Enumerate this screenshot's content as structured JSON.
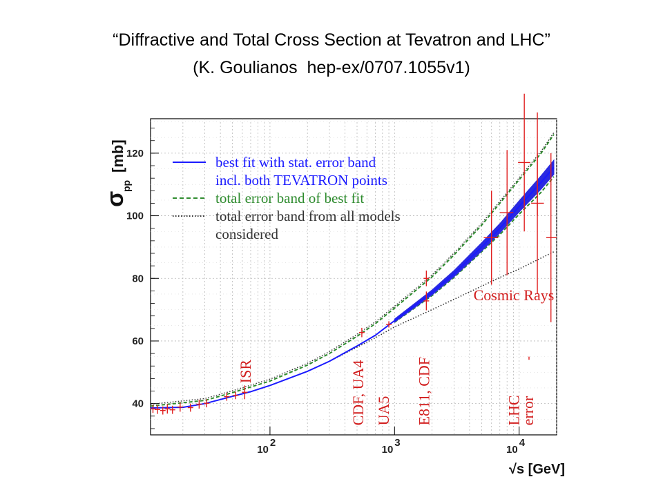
{
  "slide": {
    "title_line1": "“Diffractive and Total Cross Section at Tevatron and LHC”",
    "title_line2": "(K. Goulianos  hep-ex/0707.1055v1)"
  },
  "chart_data": {
    "type": "line",
    "x_scale": "log",
    "xlim": [
      11,
      20000
    ],
    "ylim": [
      30,
      131
    ],
    "xlabel": "√s [GeV]",
    "ylabel_main": "σ",
    "ylabel_sub": "pp",
    "ylabel_unit": "[mb]",
    "x_ticks": [
      {
        "value": 100,
        "base": "10",
        "exp": "2"
      },
      {
        "value": 1000,
        "base": "10",
        "exp": "3"
      },
      {
        "value": 10000,
        "base": "10",
        "exp": "4"
      }
    ],
    "y_ticks": [
      40,
      60,
      80,
      100,
      120
    ],
    "grid": true,
    "legend_position": "top-left",
    "legend": [
      {
        "label": "best fit with stat. error band",
        "color": "#1a1aff",
        "style": "solid"
      },
      {
        "label": "incl. both TEVATRON points",
        "color": "#1a1aff",
        "style": "none"
      },
      {
        "label": "total error band of best fit",
        "color": "#2e8b2e",
        "style": "dashed"
      },
      {
        "label": "total error band from all models",
        "color": "#333333",
        "style": "dotted"
      },
      {
        "label": "considered",
        "color": "#333333",
        "style": "none"
      }
    ],
    "colors": {
      "fit": "#1a1aff",
      "fit_band": "#2a2ae0",
      "total_band": "#2e8b2e",
      "models_band": "#333333",
      "data": "#e02020",
      "annotation": "#d21e1e"
    },
    "series": [
      {
        "role": "best-fit",
        "x": [
          11,
          20,
          30,
          50,
          70,
          100,
          200,
          300,
          500,
          700,
          1000,
          2000,
          3000,
          5000,
          7000,
          10000,
          15000,
          19000
        ],
        "y": [
          38.6,
          38.8,
          40,
          42.3,
          43.8,
          45.8,
          50.3,
          53.5,
          58.4,
          61.8,
          66.5,
          75.5,
          81.5,
          90,
          96,
          103,
          110.7,
          115.5
        ]
      },
      {
        "role": "fit-band",
        "x": [
          1000,
          2000,
          3000,
          5000,
          7000,
          10000,
          15000,
          19000
        ],
        "lower": [
          66,
          74.7,
          80.5,
          88.7,
          94.5,
          101.2,
          108.5,
          113.2
        ],
        "upper": [
          67,
          76.3,
          82.5,
          91.4,
          97.5,
          104.8,
          112.8,
          117.8
        ]
      },
      {
        "role": "total-band-upper",
        "x": [
          11,
          30,
          50,
          100,
          200,
          300,
          500,
          700,
          1000,
          2000,
          3000,
          5000,
          7000,
          10000,
          15000,
          19000
        ],
        "y": [
          39.2,
          41,
          43.5,
          47.2,
          52.3,
          56,
          61.5,
          65.5,
          70.5,
          80.5,
          87.5,
          97,
          104,
          111.5,
          120,
          126
        ]
      },
      {
        "role": "total-band-lower",
        "x": [
          1000,
          2000,
          3000,
          5000,
          7000,
          10000,
          15000,
          19000
        ],
        "y": [
          66,
          74.5,
          80.3,
          88.5,
          94,
          100.5,
          107.5,
          112.5
        ]
      },
      {
        "role": "models-band-lower",
        "x": [
          300,
          500,
          700,
          1000,
          2000,
          3000,
          5000,
          7000,
          10000,
          15000,
          19000
        ],
        "y": [
          53.5,
          58,
          61,
          64.5,
          70,
          73.3,
          77.5,
          80.3,
          83,
          86.5,
          88.5
        ]
      }
    ],
    "data_points": [
      {
        "x": 11.5,
        "y": 38.3,
        "err": 1.3
      },
      {
        "x": 12.5,
        "y": 38.1,
        "err": 1.4
      },
      {
        "x": 13.8,
        "y": 37.8,
        "err": 1.3
      },
      {
        "x": 15,
        "y": 38.3,
        "err": 1.5
      },
      {
        "x": 16.5,
        "y": 38.0,
        "err": 1.3
      },
      {
        "x": 19,
        "y": 38.9,
        "err": 1.5
      },
      {
        "x": 23,
        "y": 38.7,
        "err": 1.3
      },
      {
        "x": 27,
        "y": 39.8,
        "err": 1.4
      },
      {
        "x": 31,
        "y": 40.1,
        "err": 1.3
      },
      {
        "x": 45,
        "y": 42.2,
        "err": 1.3
      },
      {
        "x": 53,
        "y": 42.6,
        "err": 1.2
      },
      {
        "x": 62.7,
        "y": 43.6,
        "err": 2.2
      },
      {
        "x": 546,
        "y": 62.7,
        "err": 1.5
      },
      {
        "x": 900,
        "y": 65.3,
        "err": 1.0
      },
      {
        "x": 1800,
        "y": 72.8,
        "err": 3.0
      },
      {
        "x": 1800,
        "y": 80.0,
        "err": 2.5
      },
      {
        "x": 6000,
        "y": 93.0,
        "err": 15,
        "xerr_lo": 5200,
        "xerr_hi": 6800
      },
      {
        "x": 8000,
        "y": 101.0,
        "err": 20,
        "xerr_lo": 7000,
        "xerr_hi": 9000
      },
      {
        "x": 11000,
        "y": 117.0,
        "err": 22,
        "xerr_lo": 9800,
        "xerr_hi": 12300
      },
      {
        "x": 14000,
        "y": 104.0,
        "err": 29,
        "xerr_lo": 12500,
        "xerr_hi": 15800
      },
      {
        "x": 18000,
        "y": 93.0,
        "err": 27,
        "xerr_lo": 16500,
        "xerr_hi": 20000
      },
      {
        "x": 14000,
        "y": 110.0,
        "err": 10,
        "xerr_lo": 14000,
        "xerr_hi": 14000
      },
      {
        "x": 12000,
        "y": 54.5,
        "err": 0.5,
        "xerr_lo": 12000,
        "xerr_hi": 12000
      }
    ],
    "annotations": [
      {
        "text": "ISR",
        "x": 70,
        "y": 46.5,
        "rotate": -90
      },
      {
        "text": "CDF, UA4",
        "x": 560,
        "y": 33,
        "rotate": -90
      },
      {
        "text": "UA5",
        "x": 900,
        "y": 33,
        "rotate": -90
      },
      {
        "text": "E811, CDF",
        "x": 1900,
        "y": 33,
        "rotate": -90
      },
      {
        "text": "LHC",
        "x": 10000,
        "y": 33,
        "rotate": -90
      },
      {
        "text": "error",
        "x": 13000,
        "y": 33,
        "rotate": -90
      },
      {
        "text": "Cosmic Rays",
        "x": 4300,
        "y": 73,
        "rotate": 0
      }
    ]
  }
}
